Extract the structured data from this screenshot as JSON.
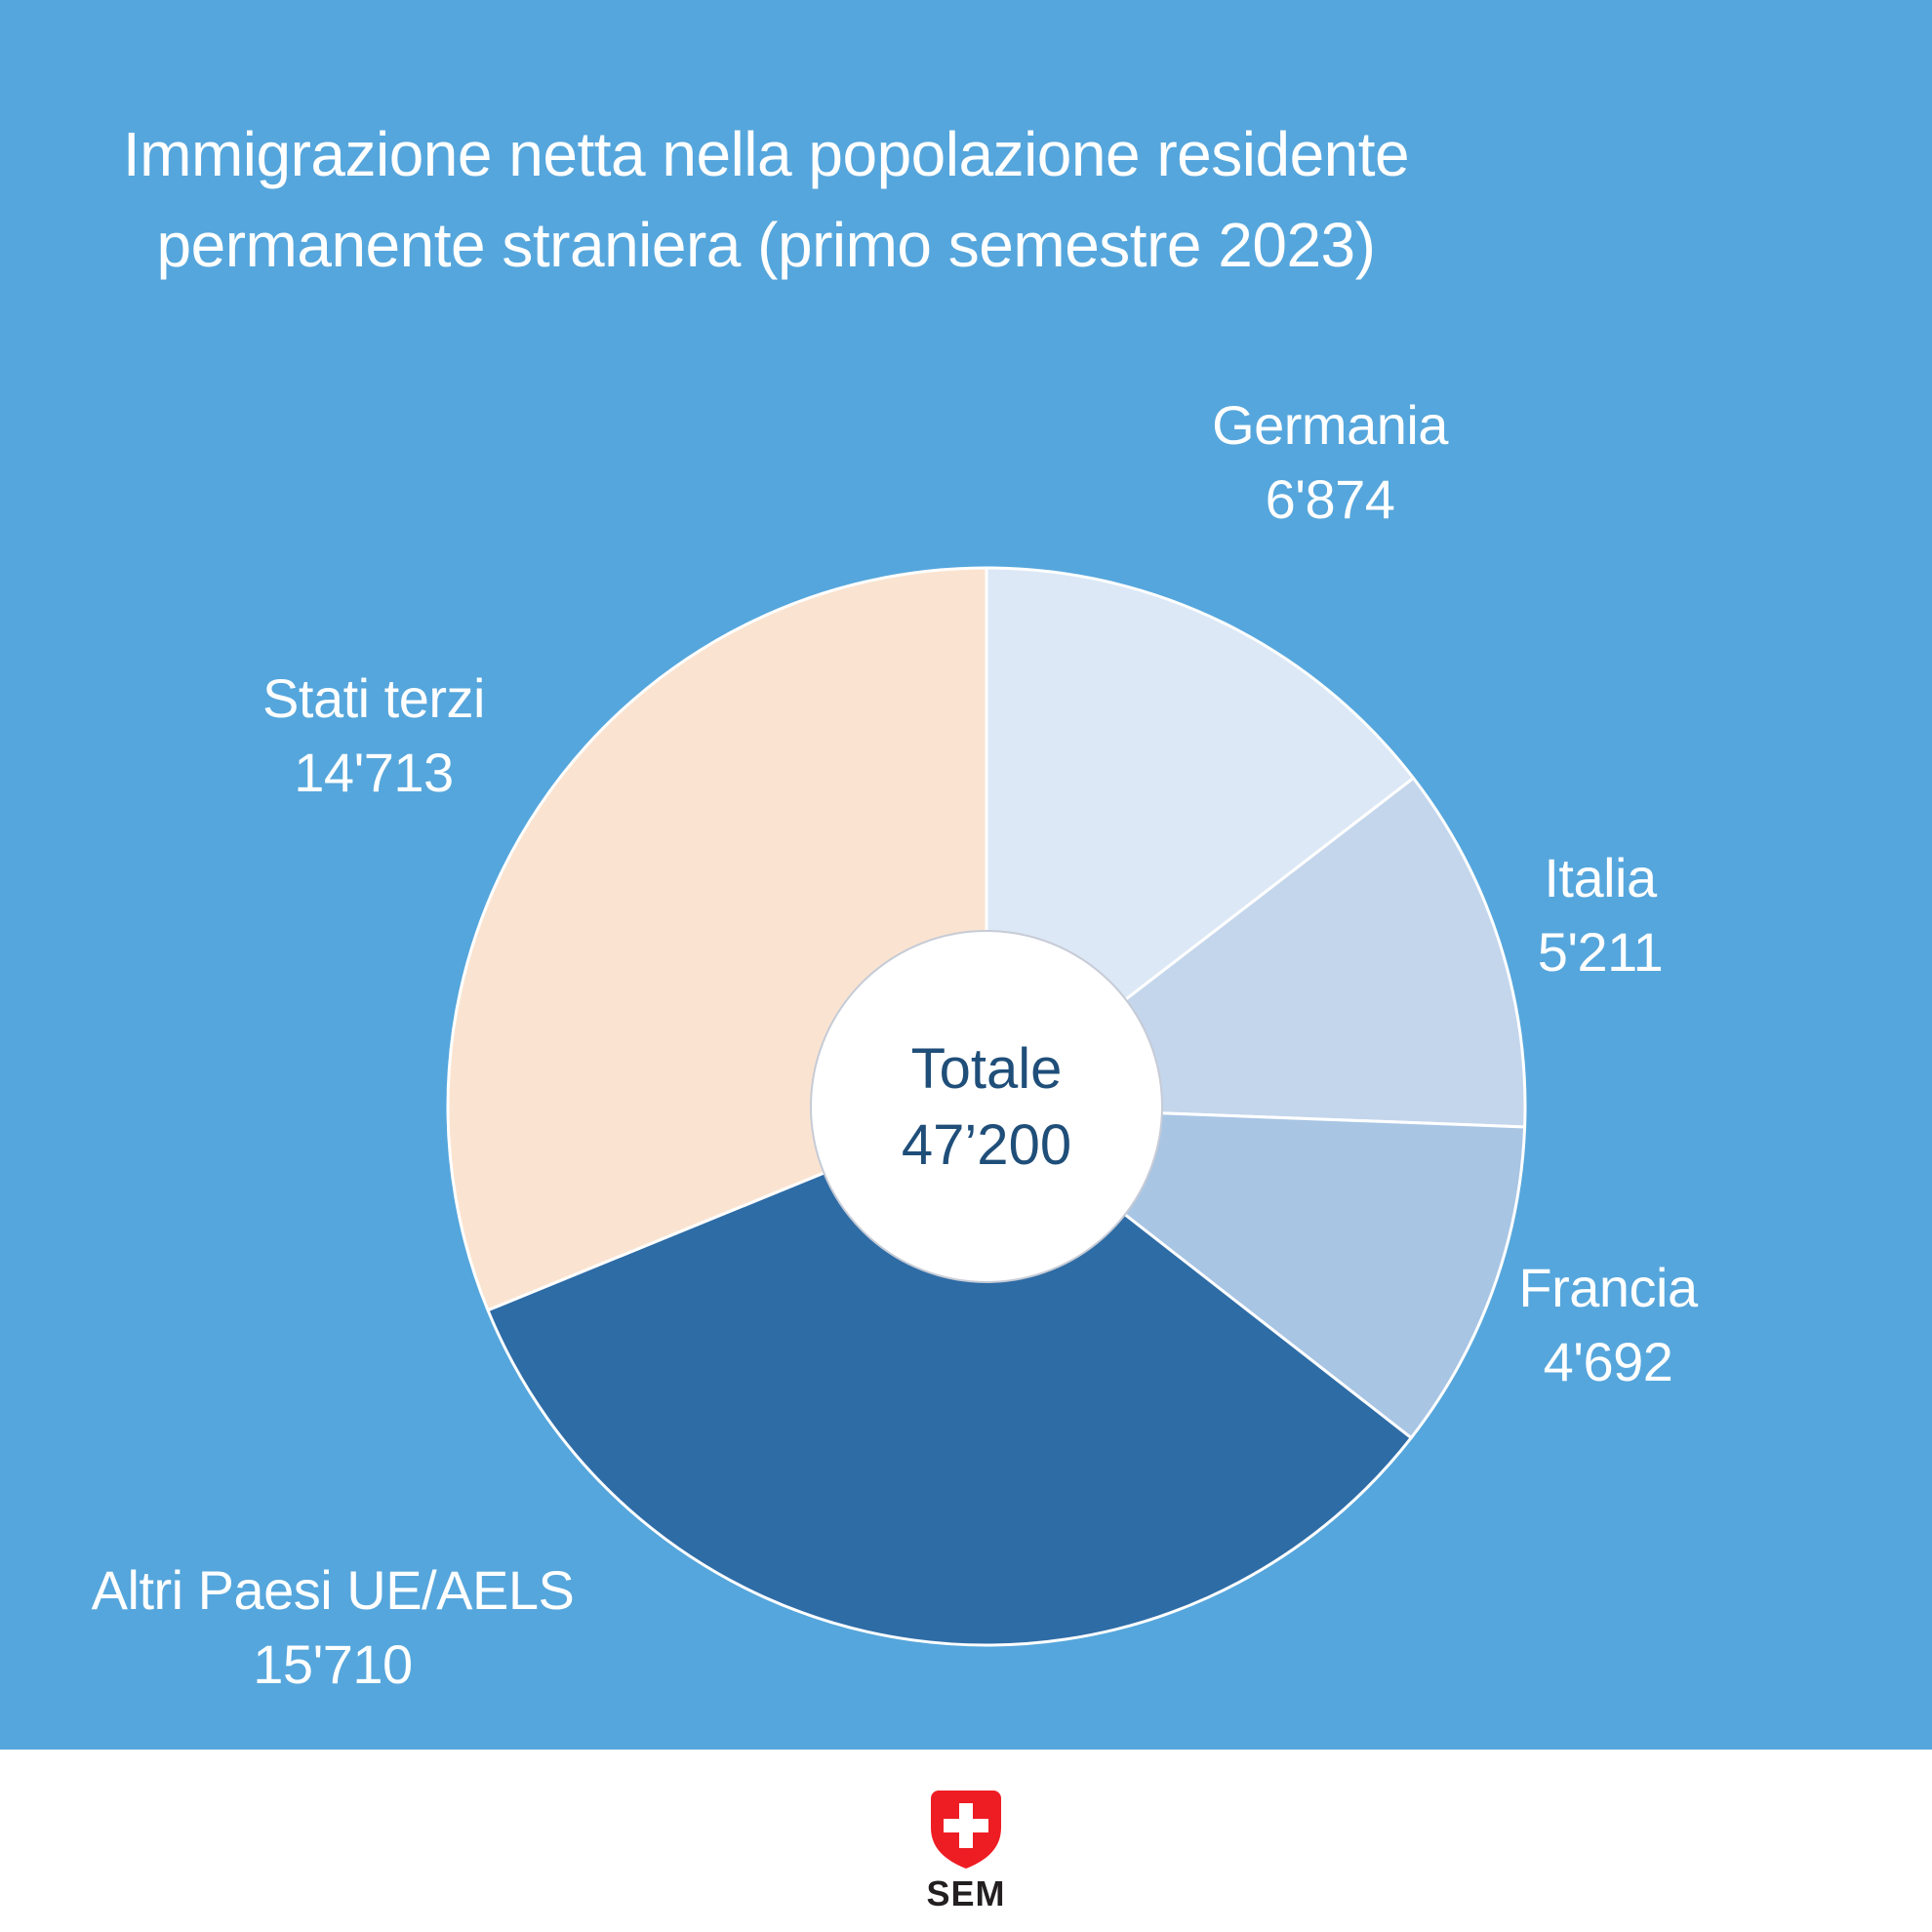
{
  "title": {
    "text": "Immigrazione netta nella popolazione residente permanente straniera (primo semestre 2023)",
    "lines": [
      "Immigrazione netta nella popolazione residente",
      "permanente straniera (primo semestre 2023)"
    ],
    "color": "#FFFFFF"
  },
  "chart_data": {
    "type": "pie",
    "style": "donut",
    "direction": "clockwise",
    "start_angle_deg_from_top": 0,
    "title": "Immigrazione netta nella popolazione residente permanente straniera (primo semestre 2023)",
    "center_label": "Totale",
    "center_value_text": "47’200",
    "total_value": 47200,
    "segments": [
      {
        "label": "Germania",
        "value": 6874,
        "value_text": "6'874",
        "color": "#DCE8F6"
      },
      {
        "label": "Italia",
        "value": 5211,
        "value_text": "5'211",
        "color": "#C4D6EC"
      },
      {
        "label": "Francia",
        "value": 4692,
        "value_text": "4'692",
        "color": "#A8C5E4"
      },
      {
        "label": "Altri Paesi UE/AELS",
        "value": 15710,
        "value_text": "15'710",
        "color": "#2E6CA6"
      },
      {
        "label": "Stati terzi",
        "value": 14713,
        "value_text": "14'713",
        "color": "#FAE4D1"
      }
    ],
    "slice_stroke": "#FFFFFF",
    "hole_color": "#FFFFFF",
    "hole_border": "#C6CBD6",
    "center_text_color": "#1F4E79",
    "background": "#55A6DC",
    "legend_position": "labels-around-pie",
    "grid": false
  },
  "footer": {
    "org": "SEM",
    "background": "#FFFFFF",
    "text_color": "#231F20",
    "logo": {
      "shield_color": "#EE1D23",
      "cross_color": "#FFFFFF"
    }
  }
}
